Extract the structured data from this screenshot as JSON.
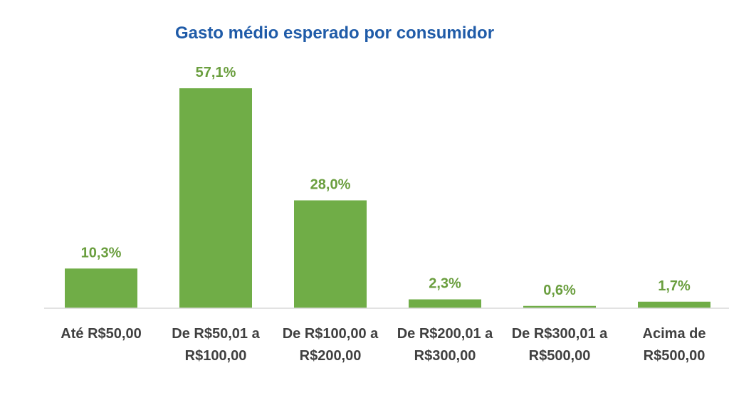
{
  "chart_data": {
    "type": "bar",
    "title": "Gasto médio esperado por consumidor",
    "categories": [
      [
        "Até R$50,00"
      ],
      [
        "De R$50,01 a",
        "R$100,00"
      ],
      [
        "De R$100,00 a",
        "R$200,00"
      ],
      [
        "De R$200,01 a",
        "R$300,00"
      ],
      [
        "De R$300,01 a",
        "R$500,00"
      ],
      [
        "Acima de",
        "R$500,00"
      ]
    ],
    "values": [
      10.3,
      57.1,
      28.0,
      2.3,
      0.6,
      1.7
    ],
    "data_labels": [
      "10,3%",
      "57,1%",
      "28,0%",
      "2,3%",
      "0,6%",
      "1,7%"
    ],
    "unit": "%",
    "ylim": [
      0,
      57.1
    ],
    "grid": false,
    "legend": "none",
    "colors": {
      "bar": "#70ad47",
      "data_label": "#6a9e3e",
      "title": "#1f5ba8",
      "axis": "#d9d9d9",
      "tick_label": "#404040"
    }
  }
}
